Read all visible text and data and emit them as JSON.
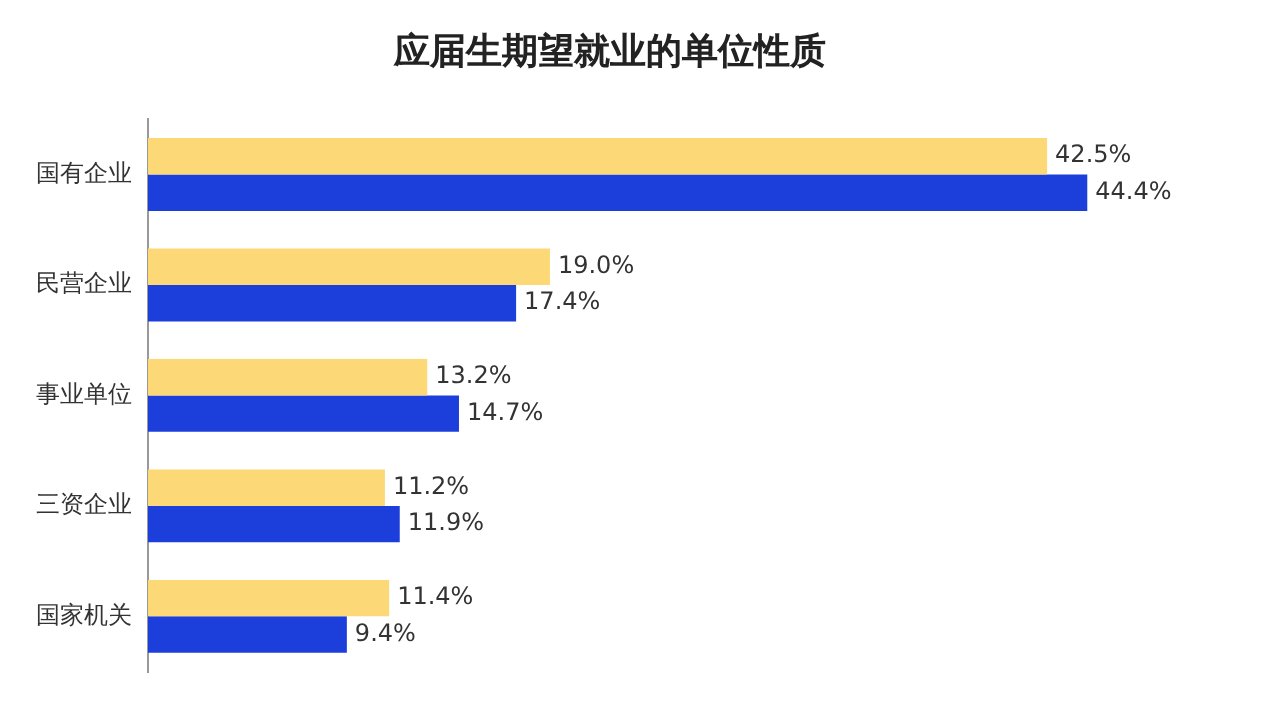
{
  "chart_data": {
    "type": "bar",
    "orientation": "horizontal",
    "title": "应届生期望就业的单位性质",
    "categories": [
      "国有企业",
      "民营企业",
      "事业单位",
      "三资企业",
      "国家机关"
    ],
    "series": [
      {
        "color": "#fcd876",
        "values": [
          42.5,
          19.0,
          13.2,
          11.2,
          11.4
        ],
        "value_labels": [
          "42.5%",
          "19.0%",
          "13.2%",
          "11.2%",
          "11.4%"
        ]
      },
      {
        "color": "#1c3fdc",
        "values": [
          44.4,
          17.4,
          14.7,
          11.9,
          9.4
        ],
        "value_labels": [
          "44.4%",
          "17.4%",
          "14.7%",
          "11.9%",
          "9.4%"
        ]
      }
    ],
    "legend": false
  }
}
